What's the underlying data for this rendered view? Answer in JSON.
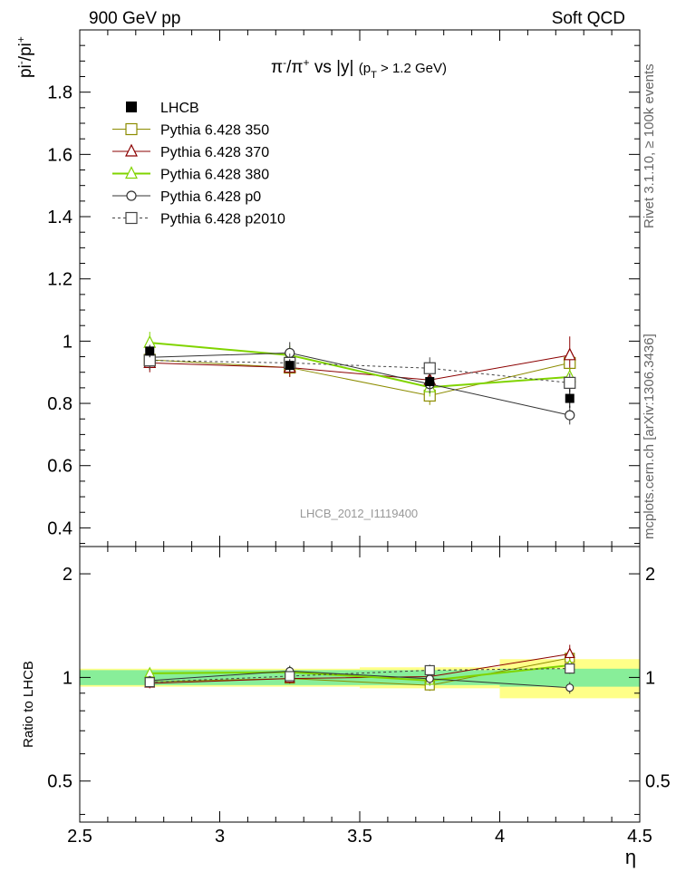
{
  "header": {
    "left": "900 GeV pp",
    "right": "Soft QCD"
  },
  "side_labels": {
    "rivet": "Rivet 3.1.10, ≥ 100k events",
    "mcplots": "mcplots.cern.ch [arXiv:1306.3436]"
  },
  "watermark": "LHCB_2012_I1119400",
  "chart_data": {
    "type": "line",
    "title": "π⁻/π⁺ vs |y| (pT > 1.2 GeV)",
    "xlabel": "η",
    "ylabel": "pi-/pi+",
    "ratio_ylabel": "Ratio to LHCB",
    "xlim": [
      2.5,
      4.5
    ],
    "ylim": [
      0.34,
      2.0
    ],
    "ratio_ylim": [
      0.38,
      2.4
    ],
    "x_ticks": [
      "2.5",
      "3",
      "3.5",
      "4",
      "4.5"
    ],
    "y_ticks": [
      "0.4",
      "0.6",
      "0.8",
      "1",
      "1.2",
      "1.4",
      "1.6",
      "1.8"
    ],
    "ratio_ticks": [
      "0.5",
      "1",
      "2"
    ],
    "data": {
      "name": "LHCB",
      "x": [
        2.75,
        3.25,
        3.75,
        4.25
      ],
      "x_edges": [
        [
          2.5,
          3.0
        ],
        [
          3.0,
          3.5
        ],
        [
          3.5,
          4.0
        ],
        [
          4.0,
          4.5
        ]
      ],
      "y": [
        0.968,
        0.922,
        0.87,
        0.816
      ],
      "yerr": [
        0.02,
        0.02,
        0.02,
        0.03
      ],
      "band_stat": [
        0.05,
        0.05,
        0.05,
        0.06
      ],
      "band_tot": [
        0.06,
        0.06,
        0.07,
        0.13
      ]
    },
    "series": [
      {
        "name": "Pythia 6.428 350",
        "color": "#8c8c00",
        "marker": "square-open",
        "dash": "",
        "x": [
          2.75,
          3.25,
          3.75,
          4.25
        ],
        "y": [
          0.94,
          0.915,
          0.825,
          0.93
        ],
        "yerr": [
          0.03,
          0.03,
          0.03,
          0.03
        ]
      },
      {
        "name": "Pythia 6.428 370",
        "color": "#8b0000",
        "marker": "triangle-open",
        "dash": "",
        "x": [
          2.75,
          3.25,
          3.75,
          4.25
        ],
        "y": [
          0.93,
          0.915,
          0.875,
          0.955
        ],
        "yerr": [
          0.03,
          0.03,
          0.03,
          0.06
        ]
      },
      {
        "name": "Pythia 6.428 380",
        "color": "#80d400",
        "marker": "triangle-open",
        "dash": "",
        "x": [
          2.75,
          3.25,
          3.75,
          4.25
        ],
        "y": [
          0.995,
          0.955,
          0.852,
          0.885
        ],
        "yerr": [
          0.035,
          0.03,
          0.03,
          0.03
        ]
      },
      {
        "name": "Pythia 6.428 p0",
        "color": "#333333",
        "marker": "circle-open",
        "dash": "",
        "x": [
          2.75,
          3.25,
          3.75,
          4.25
        ],
        "y": [
          0.948,
          0.962,
          0.862,
          0.762
        ],
        "yerr": [
          0.03,
          0.035,
          0.03,
          0.03
        ]
      },
      {
        "name": "Pythia 6.428 p2010",
        "color": "#444444",
        "marker": "square-open",
        "dash": "3,3",
        "x": [
          2.75,
          3.25,
          3.75,
          4.25
        ],
        "y": [
          0.938,
          0.93,
          0.913,
          0.866
        ],
        "yerr": [
          0.03,
          0.03,
          0.035,
          0.03
        ]
      }
    ]
  }
}
